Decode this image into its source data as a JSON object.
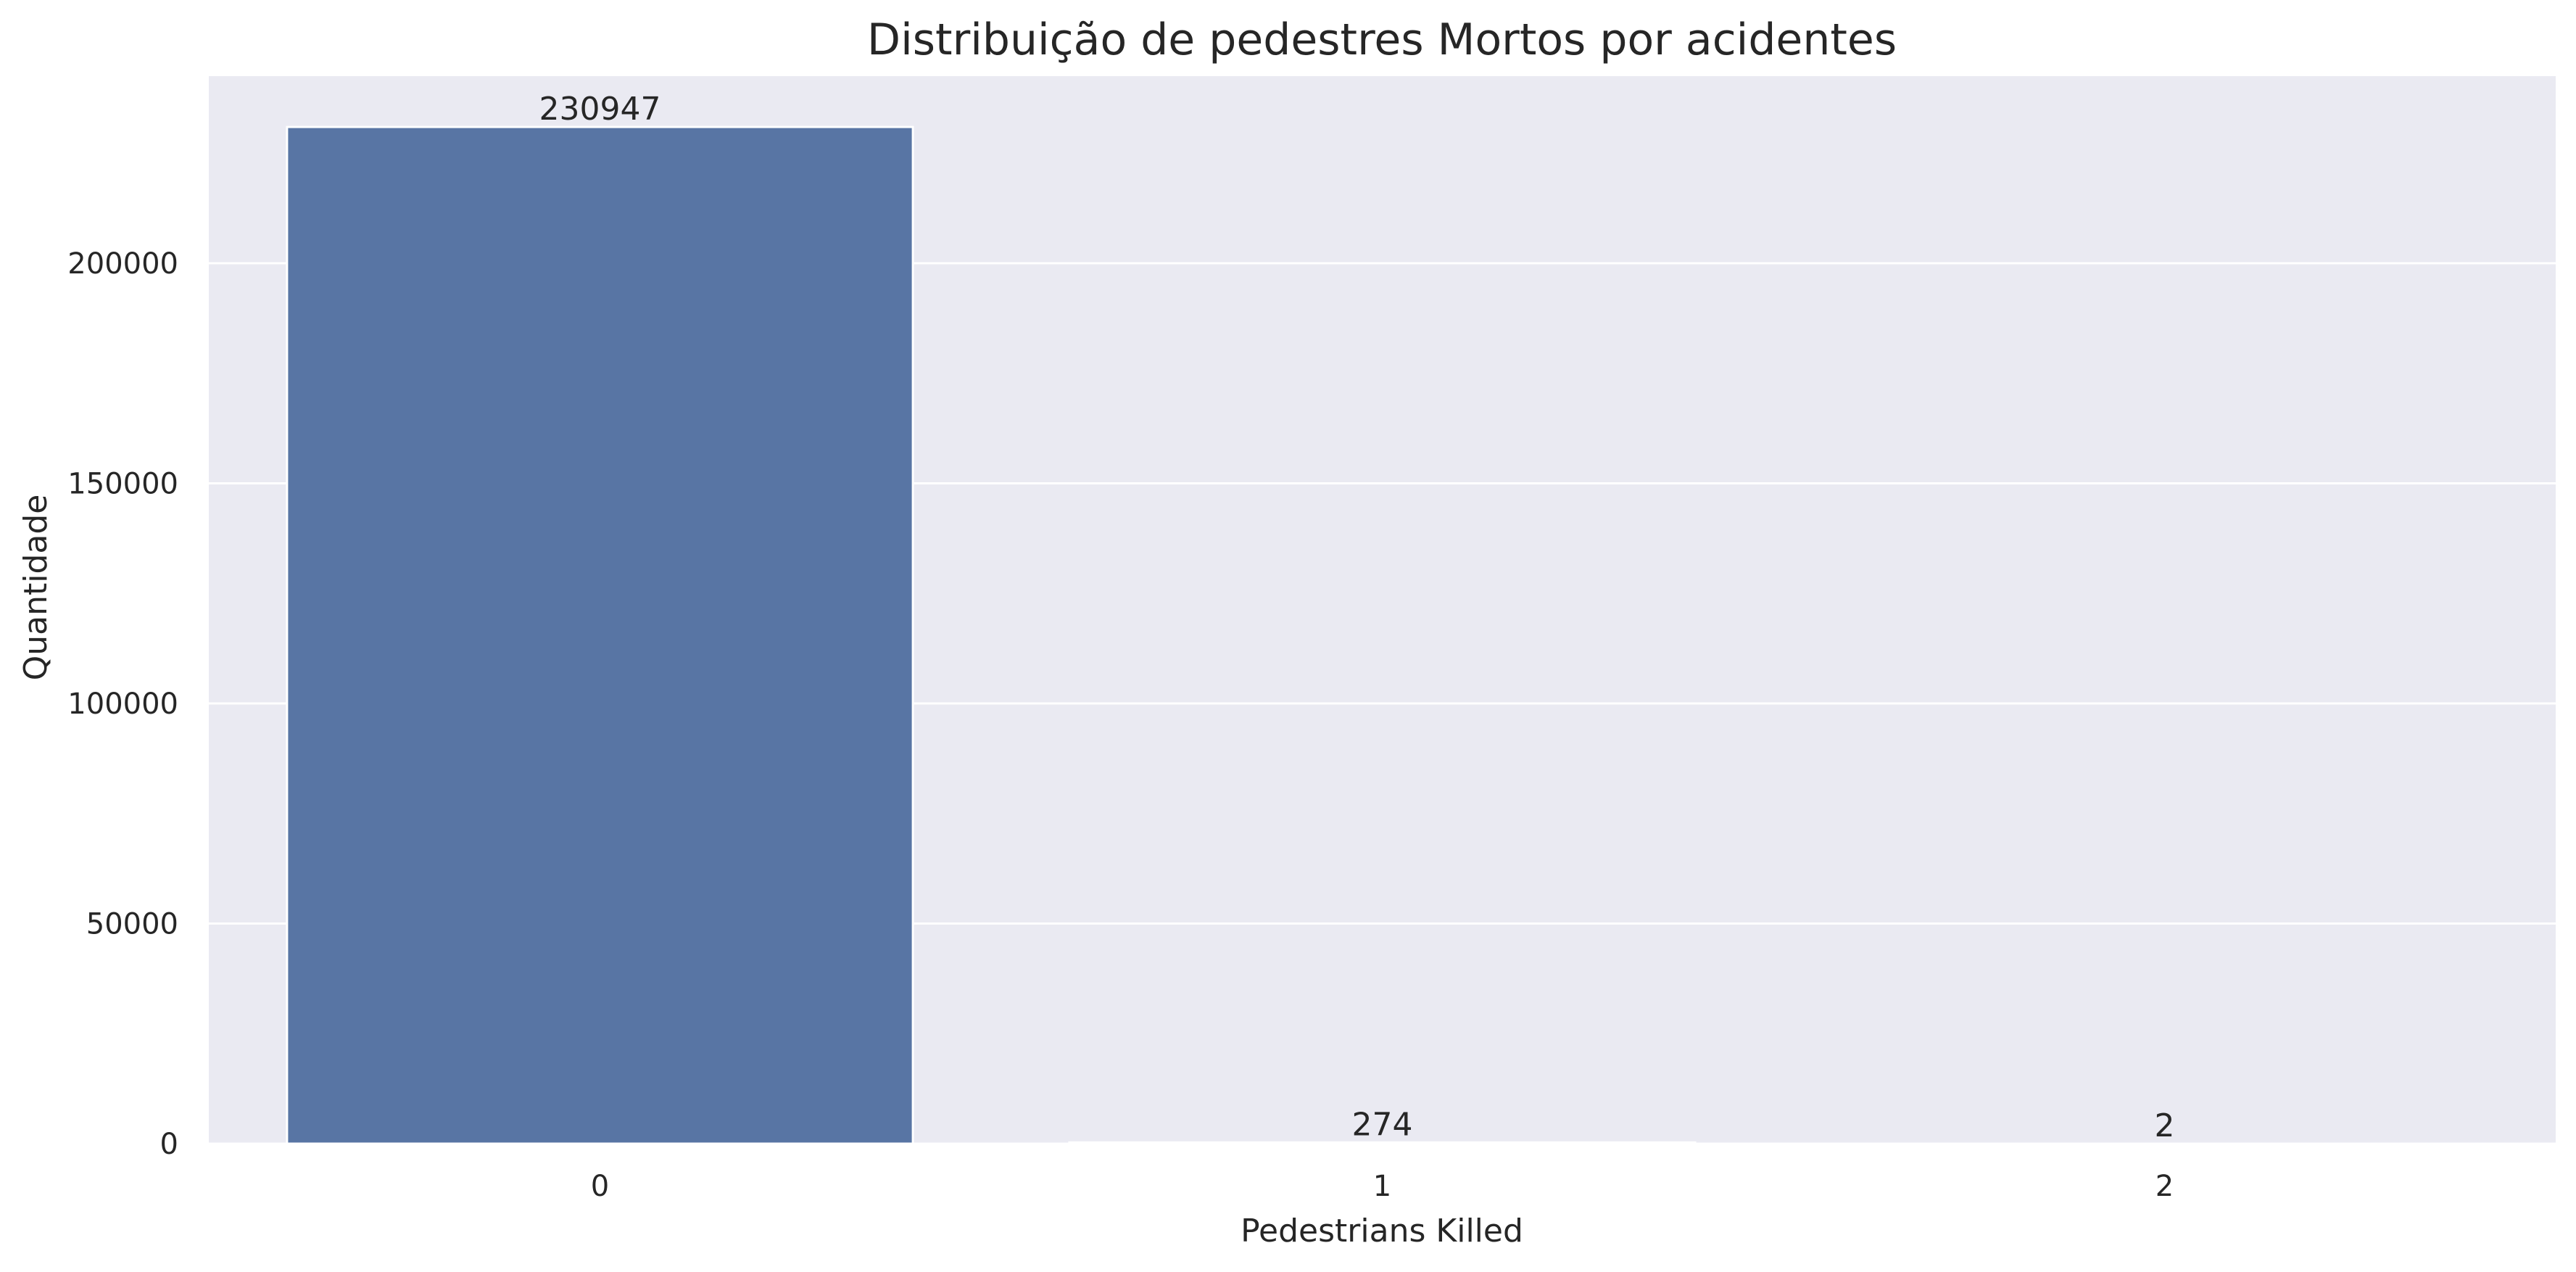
{
  "chart_data": {
    "type": "bar",
    "title": "Distribuição de pedestres Mortos por acidentes",
    "xlabel": "Pedestrians Killed",
    "ylabel": "Quantidade",
    "categories": [
      "0",
      "1",
      "2"
    ],
    "values": [
      230947,
      274,
      2
    ],
    "data_labels": [
      "230947",
      "274",
      "2"
    ],
    "ylim": [
      0,
      242494
    ],
    "yticks": [
      0,
      50000,
      100000,
      150000,
      200000
    ],
    "ytick_labels": [
      "0",
      "50000",
      "100000",
      "150000",
      "200000"
    ],
    "grid": true,
    "style": "seaborn-darkgrid",
    "colors": {
      "bar": "#5875a4",
      "plot_background": "#eaeaf2",
      "grid": "#ffffff"
    }
  }
}
